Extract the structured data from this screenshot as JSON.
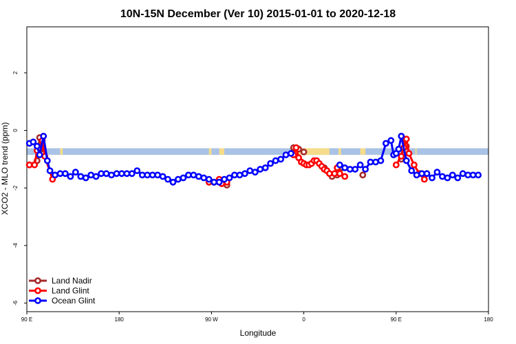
{
  "chart_data": {
    "type": "line",
    "title": "10N-15N December (Ver 10)   2015-01-01 to 2020-12-18",
    "xlabel": "Longitude",
    "ylabel": "XCO2 - MLO trend (ppm)",
    "xlim": [
      90,
      450
    ],
    "ylim": [
      -6.3,
      3.6
    ],
    "x_ticks": [
      {
        "value": 90,
        "label": "90 E"
      },
      {
        "value": 162,
        "label": "180"
      },
      {
        "value": 234,
        "label": "90 W"
      },
      {
        "value": 306,
        "label": "0"
      },
      {
        "value": 378,
        "label": "90 E"
      },
      {
        "value": 450,
        "label": "180"
      }
    ],
    "y_ticks": [
      {
        "value": 2,
        "label": "2"
      },
      {
        "value": 0,
        "label": "0"
      },
      {
        "value": -2,
        "label": "-2"
      },
      {
        "value": -4,
        "label": "-4"
      },
      {
        "value": -6,
        "label": "-6"
      }
    ],
    "grid": false,
    "legend_position": "bottom-left",
    "band": {
      "y_range": [
        -0.85,
        -0.62
      ],
      "ocean_color": "#a9c2e6",
      "land_color": "#f5dc8a",
      "land_segments": [
        [
          116,
          118
        ],
        [
          232,
          234
        ],
        [
          240,
          244
        ],
        [
          298,
          305
        ],
        [
          306,
          326
        ],
        [
          333,
          335
        ],
        [
          350,
          354
        ],
        [
          384,
          386
        ],
        [
          393,
          394
        ]
      ]
    },
    "series": [
      {
        "name": "Land Nadir",
        "color": "#a52a2a",
        "segments": [
          [
            [
              92,
              -1.2
            ],
            [
              98,
              -1.05
            ],
            [
              100,
              -0.25
            ],
            [
              103,
              -0.8
            ]
          ],
          [
            [
              232,
              -1.75
            ],
            [
              236,
              -1.8
            ],
            [
              240,
              -1.75
            ],
            [
              242,
              -1.85
            ],
            [
              246,
              -1.9
            ]
          ],
          [
            [
              298,
              -0.6
            ],
            [
              302,
              -0.65
            ],
            [
              306,
              -0.75
            ]
          ],
          [
            [
              322,
              -1.3
            ],
            [
              328,
              -1.6
            ],
            [
              332,
              -1.55
            ],
            [
              336,
              -1.3
            ]
          ],
          [
            [
              352,
              -1.55
            ]
          ],
          [
            [
              382,
              -1.0
            ],
            [
              384,
              -0.3
            ],
            [
              386,
              -0.55
            ]
          ]
        ]
      },
      {
        "name": "Land Glint",
        "color": "#ff0000",
        "segments": [
          [
            [
              92,
              -1.2
            ],
            [
              96,
              -1.2
            ],
            [
              98,
              -0.7
            ],
            [
              100,
              -0.6
            ],
            [
              102,
              -0.35
            ],
            [
              104,
              -0.9
            ],
            [
              110,
              -1.7
            ]
          ],
          [
            [
              232,
              -1.8
            ],
            [
              236,
              -1.8
            ],
            [
              240,
              -1.7
            ],
            [
              242,
              -1.85
            ],
            [
              246,
              -1.8
            ]
          ],
          [
            [
              298,
              -0.85
            ],
            [
              300,
              -0.6
            ],
            [
              302,
              -0.95
            ],
            [
              304,
              -1.1
            ],
            [
              306,
              -1.15
            ],
            [
              308,
              -1.2
            ],
            [
              310,
              -1.2
            ],
            [
              312,
              -1.15
            ],
            [
              314,
              -1.05
            ],
            [
              316,
              -1.05
            ],
            [
              318,
              -1.15
            ],
            [
              320,
              -1.25
            ],
            [
              322,
              -1.35
            ],
            [
              324,
              -1.4
            ],
            [
              326,
              -1.5
            ],
            [
              330,
              -1.5
            ],
            [
              332,
              -1.3
            ],
            [
              334,
              -1.5
            ],
            [
              338,
              -1.6
            ]
          ],
          [
            [
              378,
              -1.2
            ],
            [
              382,
              -0.9
            ],
            [
              384,
              -0.6
            ],
            [
              386,
              -0.3
            ],
            [
              388,
              -0.8
            ],
            [
              392,
              -1.2
            ],
            [
              396,
              -1.5
            ],
            [
              400,
              -1.7
            ]
          ]
        ]
      },
      {
        "name": "Ocean Glint",
        "color": "#0000ff",
        "segments": [
          [
            [
              92,
              -0.45
            ],
            [
              95,
              -0.4
            ],
            [
              98,
              -0.55
            ],
            [
              100,
              -0.85
            ],
            [
              103,
              -0.2
            ],
            [
              106,
              -1.05
            ],
            [
              108,
              -1.4
            ],
            [
              112,
              -1.55
            ],
            [
              116,
              -1.5
            ],
            [
              120,
              -1.5
            ],
            [
              124,
              -1.6
            ],
            [
              128,
              -1.45
            ],
            [
              132,
              -1.6
            ],
            [
              136,
              -1.65
            ],
            [
              140,
              -1.55
            ],
            [
              144,
              -1.6
            ],
            [
              148,
              -1.5
            ],
            [
              152,
              -1.5
            ],
            [
              156,
              -1.55
            ],
            [
              160,
              -1.5
            ],
            [
              164,
              -1.5
            ],
            [
              168,
              -1.5
            ],
            [
              172,
              -1.5
            ],
            [
              176,
              -1.4
            ],
            [
              180,
              -1.55
            ],
            [
              184,
              -1.55
            ],
            [
              188,
              -1.55
            ],
            [
              192,
              -1.55
            ],
            [
              196,
              -1.6
            ],
            [
              200,
              -1.7
            ],
            [
              204,
              -1.8
            ],
            [
              208,
              -1.7
            ],
            [
              212,
              -1.65
            ],
            [
              216,
              -1.55
            ],
            [
              220,
              -1.55
            ],
            [
              224,
              -1.6
            ],
            [
              228,
              -1.65
            ],
            [
              232,
              -1.7
            ],
            [
              236,
              -1.8
            ],
            [
              240,
              -1.8
            ],
            [
              244,
              -1.7
            ],
            [
              248,
              -1.65
            ],
            [
              252,
              -1.55
            ],
            [
              256,
              -1.55
            ],
            [
              260,
              -1.5
            ],
            [
              264,
              -1.4
            ],
            [
              268,
              -1.45
            ],
            [
              272,
              -1.35
            ],
            [
              276,
              -1.3
            ],
            [
              280,
              -1.15
            ],
            [
              284,
              -1.05
            ],
            [
              288,
              -1.0
            ],
            [
              292,
              -0.85
            ],
            [
              296,
              -0.8
            ]
          ],
          [
            [
              334,
              -1.2
            ],
            [
              338,
              -1.3
            ],
            [
              342,
              -1.35
            ],
            [
              346,
              -1.35
            ],
            [
              350,
              -1.2
            ],
            [
              354,
              -1.35
            ],
            [
              358,
              -1.1
            ],
            [
              362,
              -1.1
            ],
            [
              366,
              -1.05
            ],
            [
              370,
              -0.45
            ],
            [
              374,
              -0.35
            ],
            [
              376,
              -0.85
            ],
            [
              378,
              -0.8
            ],
            [
              380,
              -0.65
            ],
            [
              382,
              -0.2
            ],
            [
              386,
              -1.05
            ],
            [
              390,
              -1.4
            ],
            [
              394,
              -1.55
            ],
            [
              398,
              -1.5
            ],
            [
              402,
              -1.5
            ],
            [
              406,
              -1.65
            ],
            [
              410,
              -1.45
            ],
            [
              414,
              -1.6
            ],
            [
              418,
              -1.65
            ],
            [
              422,
              -1.55
            ],
            [
              426,
              -1.65
            ],
            [
              430,
              -1.5
            ],
            [
              434,
              -1.55
            ],
            [
              438,
              -1.55
            ],
            [
              442,
              -1.55
            ]
          ]
        ]
      }
    ]
  }
}
